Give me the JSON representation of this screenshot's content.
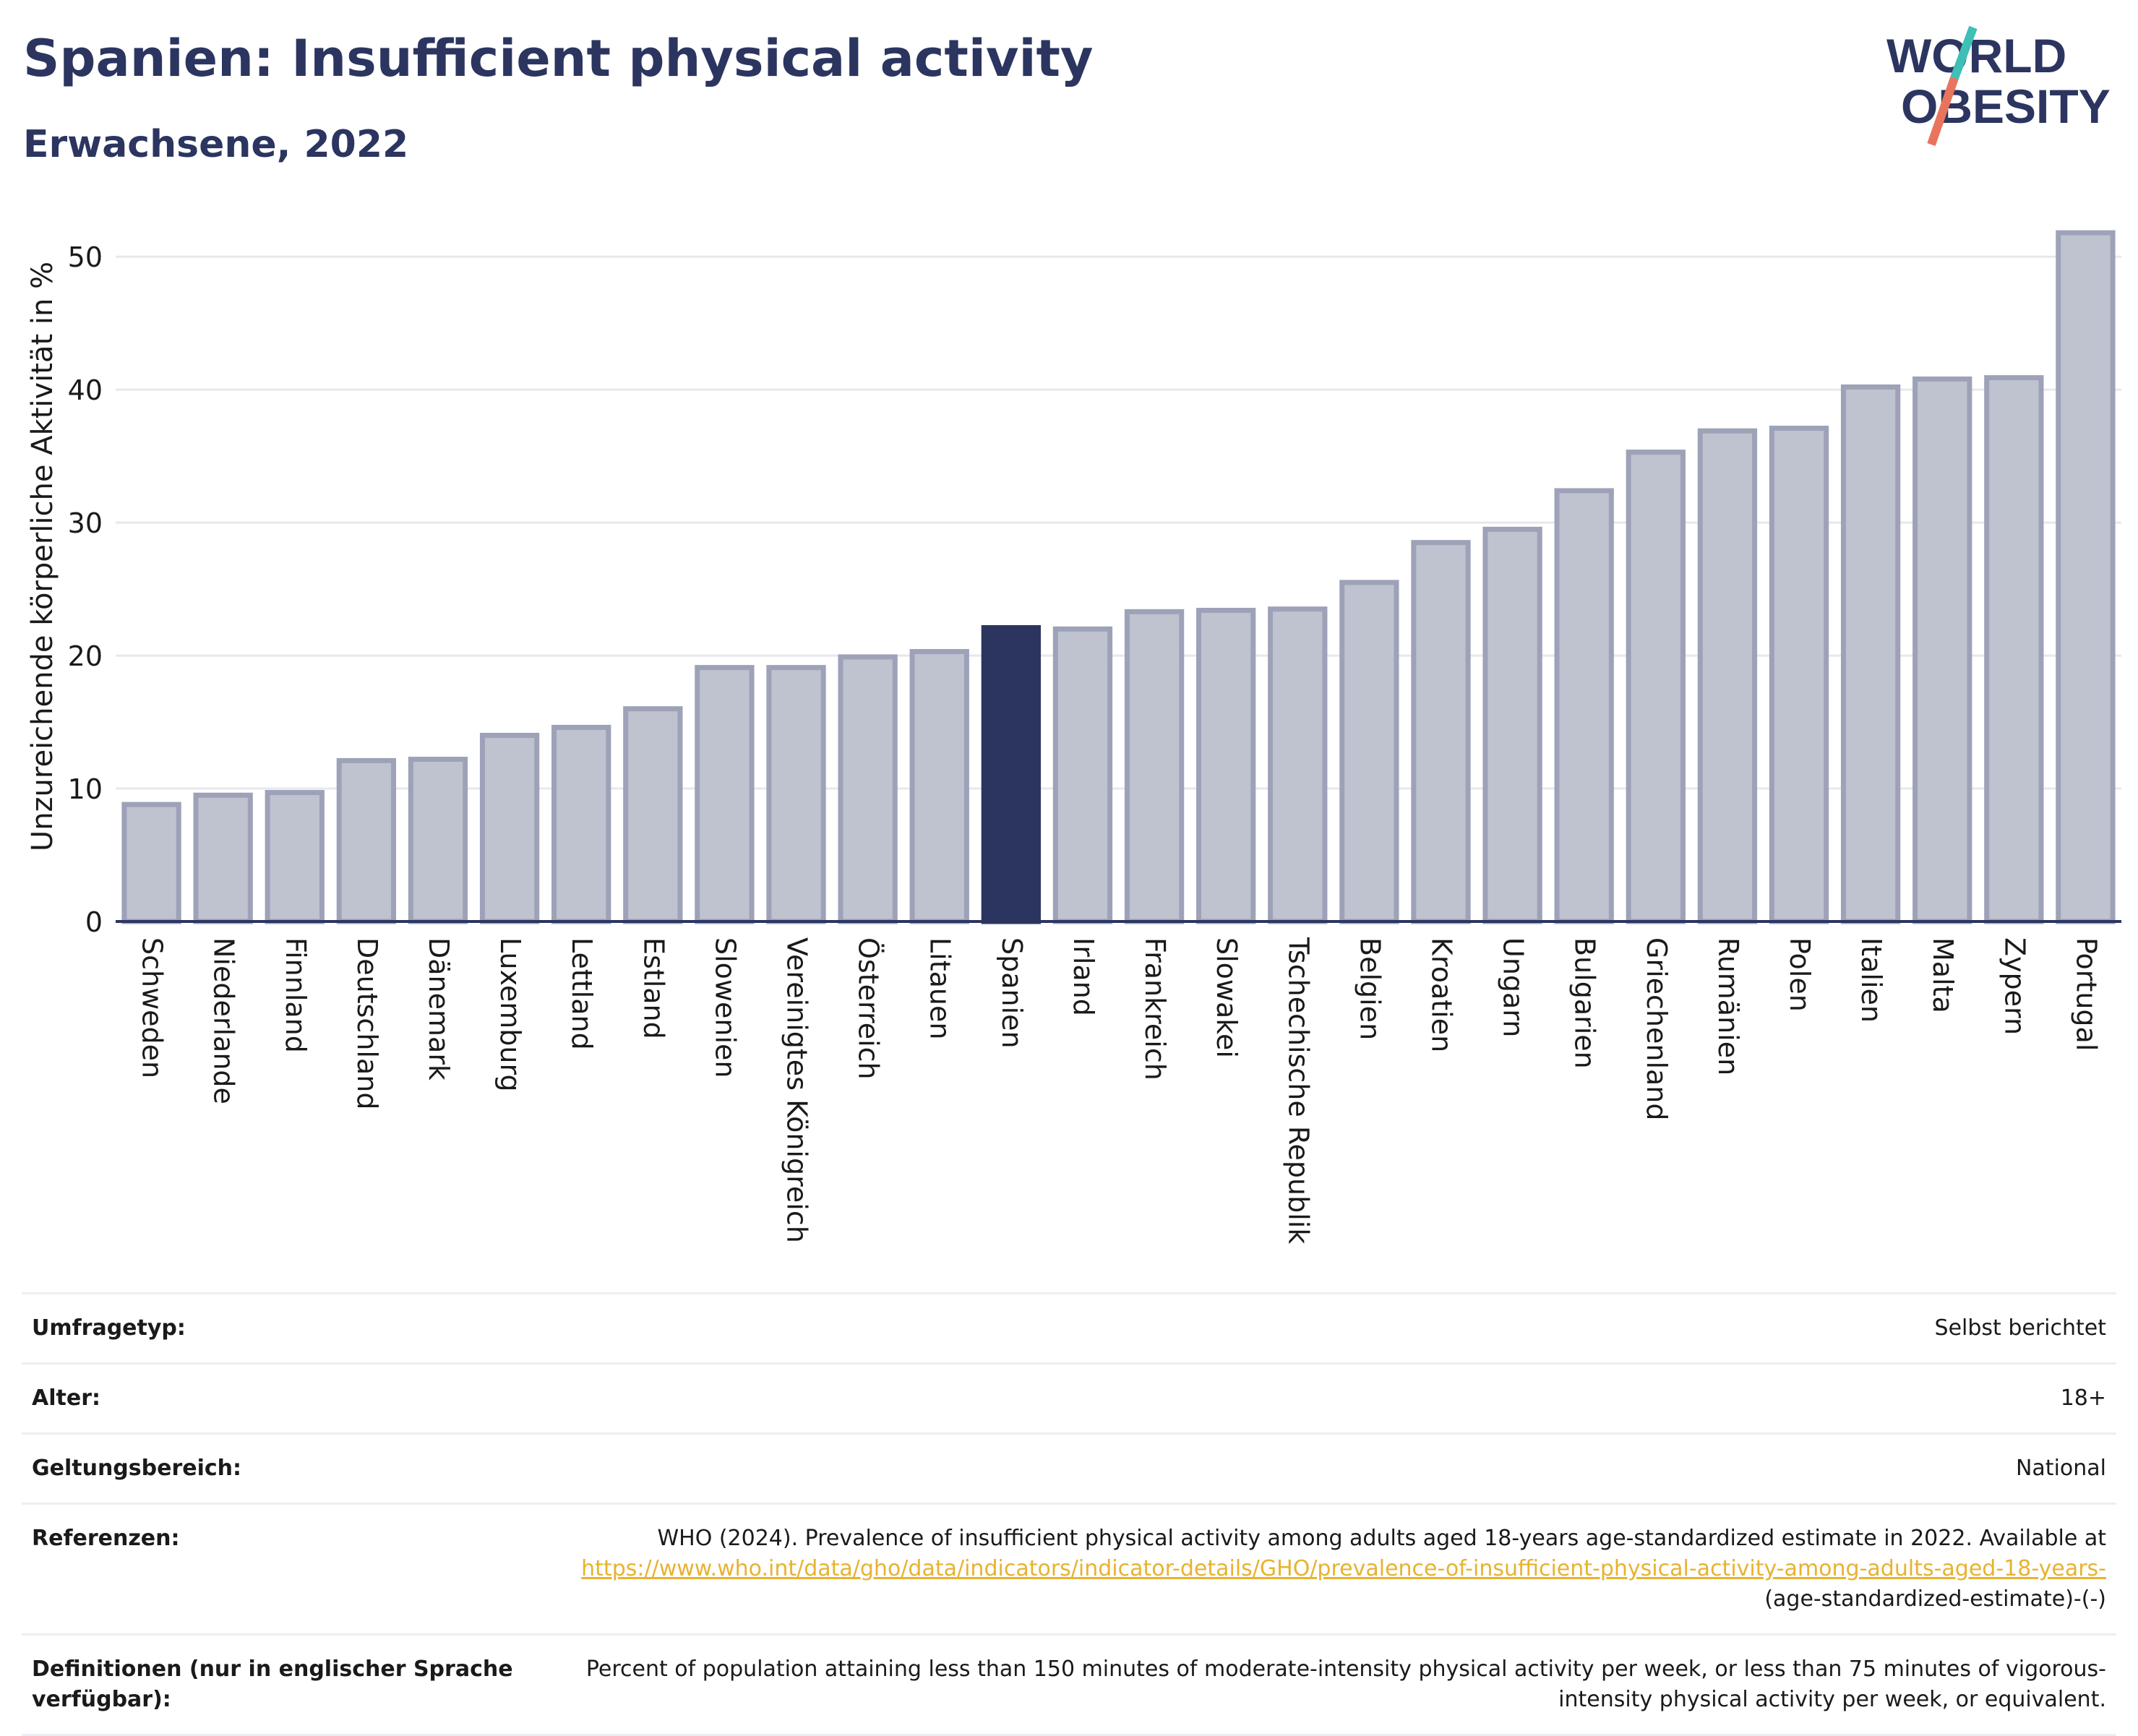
{
  "header": {
    "title": "Spanien: Insufficient physical activity",
    "subtitle": "Erwachsene, 2022"
  },
  "logo": {
    "line1": "WORLD",
    "line2": "OBESITY",
    "colors": {
      "text": "#2b3560",
      "slash_teal": "#3fbfb5",
      "slash_coral": "#e8745e"
    }
  },
  "colors": {
    "bar_default_fill": "#bfc2cf",
    "bar_default_stroke": "#9da2b8",
    "bar_highlight": "#2b3560",
    "grid": "#e6e8ee",
    "axis": "#2b3560",
    "link": "#e8b230"
  },
  "chart_data": {
    "type": "bar",
    "title": "",
    "xlabel": "",
    "ylabel": "Unzureichende körperliche Aktivität in %",
    "ylim": [
      0,
      53
    ],
    "yticks": [
      0,
      10,
      20,
      30,
      40,
      50
    ],
    "grid": true,
    "highlight": "Spanien",
    "categories": [
      "Schweden",
      "Niederlande",
      "Finnland",
      "Deutschland",
      "Dänemark",
      "Luxemburg",
      "Lettland",
      "Estland",
      "Slowenien",
      "Vereinigtes Königreich",
      "Österreich",
      "Litauen",
      "Spanien",
      "Irland",
      "Frankreich",
      "Slowakei",
      "Tschechische Republik",
      "Belgien",
      "Kroatien",
      "Ungarn",
      "Bulgarien",
      "Griechenland",
      "Rumänien",
      "Polen",
      "Italien",
      "Malta",
      "Zypern",
      "Portugal"
    ],
    "values": [
      8.8,
      9.5,
      9.7,
      12.1,
      12.2,
      14.0,
      14.6,
      16.0,
      19.1,
      19.1,
      19.9,
      20.3,
      22.1,
      22.0,
      23.3,
      23.4,
      23.5,
      25.5,
      28.5,
      29.5,
      32.4,
      35.3,
      36.9,
      37.1,
      40.2,
      40.8,
      40.9,
      51.8
    ]
  },
  "info": {
    "rows": [
      {
        "label": "Umfragetyp:",
        "value": "Selbst berichtet"
      },
      {
        "label": "Alter:",
        "value": "18+"
      },
      {
        "label": "Geltungsbereich:",
        "value": "National"
      }
    ],
    "references": {
      "label": "Referenzen:",
      "text_before": "WHO (2024). Prevalence of insufficient physical activity among adults aged 18-years age-standardized estimate in 2022. Available at",
      "link": "https://www.who.int/data/gho/data/indicators/indicator-details/GHO/prevalence-of-insufficient-physical-activity-among-adults-aged-18-years-",
      "text_after": "(age-standardized-estimate)-(-)"
    },
    "definitions": {
      "label": "Definitionen (nur in englischer Sprache verfügbar):",
      "value": "Percent of population attaining less than 150 minutes of moderate-intensity physical activity per week, or less than 75 minutes of vigorous-intensity physical activity per week, or equivalent."
    }
  }
}
